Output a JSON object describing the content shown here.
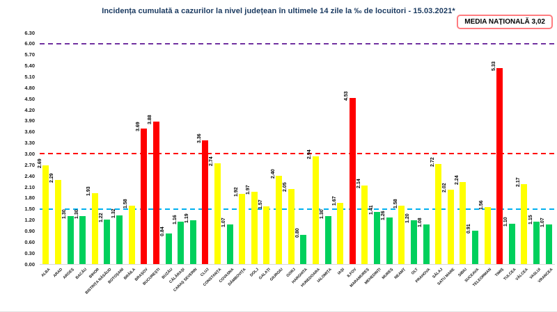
{
  "header": {
    "title": "Incidența cumulată a cazurilor la nivel județean în ultimele 14 zile   la ‰ de locuitori  - 15.03.2021*",
    "national_average_badge": "MEDIA NAȚIONALĂ 3,02"
  },
  "colors": {
    "title_text": "#17375E",
    "badge_border": "#FF7C80",
    "bar_green": "#00D05C",
    "bar_yellow": "#FFFF00",
    "bar_red": "#FF0000",
    "refline_purple": "#7030A0",
    "refline_red": "#FF0000",
    "refline_blue": "#00B0F0"
  },
  "chart_data": {
    "type": "bar",
    "title": "Incidența cumulată a cazurilor la nivel județean în ultimele 14 zile   la ‰ de locuitori  - 15.03.2021*",
    "xlabel": "",
    "ylabel": "",
    "ylim": [
      0,
      6.3
    ],
    "ytick_labels": [
      "0.00",
      "0.30",
      "0.60",
      "0.90",
      "1.20",
      "1.50",
      "1.80",
      "2.10",
      "2.40",
      "2.70",
      "3.00",
      "3.30",
      "3.60",
      "3.90",
      "4.20",
      "4.50",
      "4.80",
      "5.10",
      "5.40",
      "5.70",
      "6.00",
      "6.30"
    ],
    "grid": false,
    "legend_position": "none",
    "national_average": 3.02,
    "categories": [
      "ALBA",
      "ARAD",
      "ARGEȘ",
      "BACĂU",
      "BIHOR",
      "BISTRIȚA NĂSĂUD",
      "BOTOȘANI",
      "BRĂILA",
      "BRAȘOV",
      "BUCUREȘTI",
      "BUZĂU",
      "CĂLĂRAȘI",
      "CARAȘ SEVERIN",
      "CLUJ",
      "CONSTANȚA",
      "COVASNA",
      "DÂMBOVIȚA",
      "DOLJ",
      "GALAȚI",
      "GIURGIU",
      "GORJ",
      "HARGHITA",
      "HUNEDOARA",
      "IALOMIȚA",
      "IAȘI",
      "ILFOV",
      "MARAMUREȘ",
      "MEHEDINȚI",
      "MUREȘ",
      "NEAMȚ",
      "OLT",
      "PRAHOVA",
      "SĂLAJ",
      "SATU MARE",
      "SIBIU",
      "SUCEAVA",
      "TELEORMAN",
      "TIMIȘ",
      "TULCEA",
      "VÂLCEA",
      "VASLUI",
      "VRANCEA"
    ],
    "values": [
      2.69,
      2.29,
      1.3,
      1.3,
      1.93,
      1.22,
      1.32,
      1.58,
      3.69,
      3.88,
      0.84,
      1.16,
      1.19,
      3.36,
      2.74,
      1.07,
      1.92,
      1.97,
      1.57,
      2.4,
      2.05,
      0.8,
      2.94,
      1.3,
      1.67,
      4.53,
      2.14,
      1.41,
      1.26,
      1.58,
      1.2,
      1.08,
      2.72,
      2.02,
      2.24,
      0.91,
      1.56,
      5.33,
      1.1,
      2.17,
      1.15,
      1.07
    ],
    "bar_levels": [
      "yellow",
      "yellow",
      "green",
      "green",
      "yellow",
      "green",
      "green",
      "yellow",
      "red",
      "red",
      "green",
      "green",
      "green",
      "red",
      "yellow",
      "green",
      "yellow",
      "yellow",
      "yellow",
      "yellow",
      "yellow",
      "green",
      "yellow",
      "green",
      "yellow",
      "red",
      "yellow",
      "green",
      "green",
      "yellow",
      "green",
      "green",
      "yellow",
      "yellow",
      "yellow",
      "green",
      "yellow",
      "red",
      "green",
      "yellow",
      "green",
      "green"
    ],
    "reference_lines": [
      {
        "name": "upper-threshold",
        "value": 6.0,
        "color": "#7030A0",
        "style": "dashed"
      },
      {
        "name": "red-zone-threshold",
        "value": 3.0,
        "color": "#FF0000",
        "style": "dashed"
      },
      {
        "name": "yellow-zone-threshold",
        "value": 1.5,
        "color": "#00B0F0",
        "style": "dashed"
      }
    ]
  }
}
